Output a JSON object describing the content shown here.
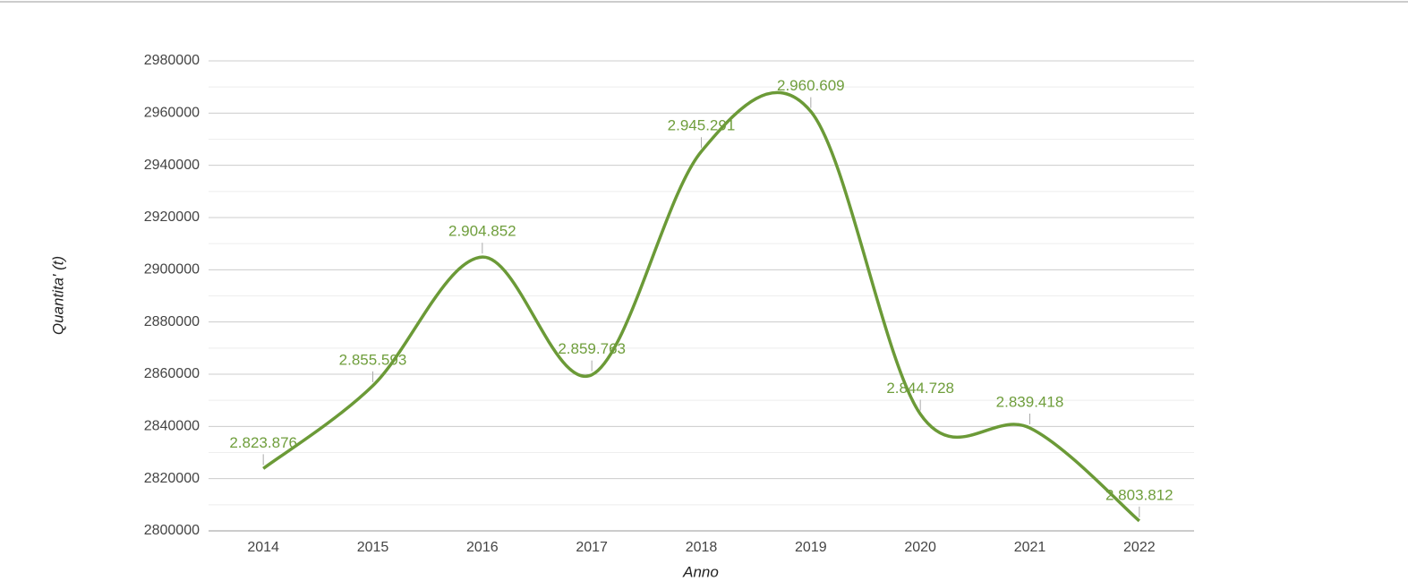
{
  "chart_data": {
    "type": "line",
    "categories": [
      "2014",
      "2015",
      "2016",
      "2017",
      "2018",
      "2019",
      "2020",
      "2021",
      "2022"
    ],
    "values": [
      2823876,
      2855593,
      2904852,
      2859763,
      2945291,
      2960609,
      2844728,
      2839418,
      2803812
    ],
    "value_labels": [
      "2.823.876",
      "2.855.593",
      "2.904.852",
      "2.859.763",
      "2.945.291",
      "2.960.609",
      "2.844.728",
      "2.839.418",
      "2.803.812"
    ],
    "color": "#6b9a37",
    "ylim": [
      2800000,
      2980000
    ],
    "yticks": [
      2800000,
      2820000,
      2840000,
      2860000,
      2880000,
      2900000,
      2920000,
      2940000,
      2960000,
      2980000
    ],
    "ylabel": "Quantita' (t)",
    "xlabel": "Anno",
    "grid": true
  }
}
